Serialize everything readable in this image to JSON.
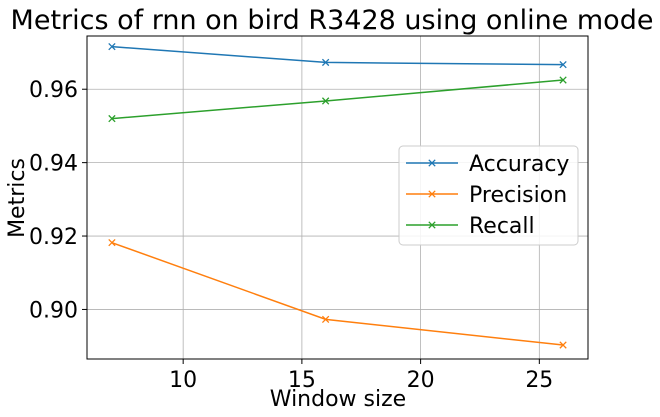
{
  "chart_data": {
    "type": "line",
    "title": "Metrics of rnn on bird R3428 using online mode",
    "xlabel": "Window size",
    "ylabel": "Metrics",
    "x": [
      7,
      16,
      26
    ],
    "xlim": [
      5.95,
      27.05
    ],
    "ylim": [
      0.8865,
      0.9745
    ],
    "xticks": [
      10,
      15,
      20,
      25
    ],
    "xtick_labels": [
      "10",
      "15",
      "20",
      "25"
    ],
    "yticks": [
      0.9,
      0.92,
      0.94,
      0.96
    ],
    "ytick_labels": [
      "0.90",
      "0.92",
      "0.94",
      "0.96"
    ],
    "grid": true,
    "legend_position": "center-right",
    "marker": "x",
    "series": [
      {
        "name": "Accuracy",
        "color": "#1f77b4",
        "values": [
          0.9716,
          0.9673,
          0.9667
        ]
      },
      {
        "name": "Precision",
        "color": "#ff7f0e",
        "values": [
          0.9182,
          0.8973,
          0.8903
        ]
      },
      {
        "name": "Recall",
        "color": "#2ca02c",
        "values": [
          0.952,
          0.9568,
          0.9625
        ]
      }
    ]
  }
}
